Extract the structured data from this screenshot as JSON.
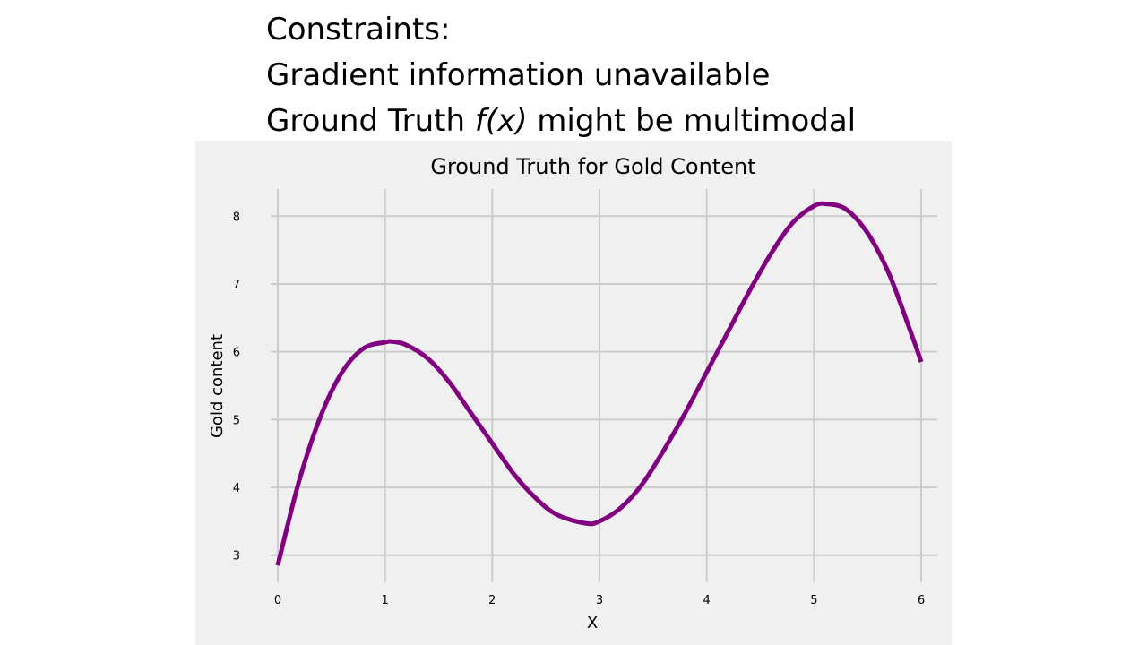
{
  "slide": {
    "constraints_heading": "Constraints:",
    "constraint_1": "Gradient information unavailable",
    "constraint_2_prefix": "Ground Truth ",
    "constraint_2_fx": "f(x)",
    "constraint_2_suffix": " might be multimodal"
  },
  "chart_data": {
    "type": "line",
    "title": "Ground Truth for Gold Content",
    "xlabel": "X",
    "ylabel": "Gold content",
    "xlim": [
      -0.1,
      6.15
    ],
    "ylim": [
      2.6,
      8.4
    ],
    "xticks": [
      0,
      1,
      2,
      3,
      4,
      5,
      6
    ],
    "yticks": [
      3,
      4,
      5,
      6,
      7,
      8
    ],
    "grid": true,
    "background_color": "#f0f0f0",
    "grid_color": "#cccccc",
    "series": [
      {
        "color": "#800080",
        "x": [
          0,
          0.2,
          0.4,
          0.6,
          0.8,
          1.0,
          1.07,
          1.2,
          1.4,
          1.6,
          1.8,
          2.0,
          2.2,
          2.4,
          2.6,
          2.87,
          3.0,
          3.2,
          3.4,
          3.6,
          3.8,
          4.0,
          4.2,
          4.4,
          4.6,
          4.8,
          5.0,
          5.12,
          5.3,
          5.5,
          5.7,
          5.9,
          6.0
        ],
        "y": [
          2.85,
          4.1,
          5.05,
          5.7,
          6.05,
          6.14,
          6.15,
          6.1,
          5.9,
          5.55,
          5.1,
          4.65,
          4.2,
          3.85,
          3.6,
          3.47,
          3.5,
          3.7,
          4.05,
          4.55,
          5.1,
          5.7,
          6.3,
          6.9,
          7.45,
          7.9,
          8.15,
          8.18,
          8.1,
          7.75,
          7.15,
          6.3,
          5.85
        ]
      }
    ]
  }
}
